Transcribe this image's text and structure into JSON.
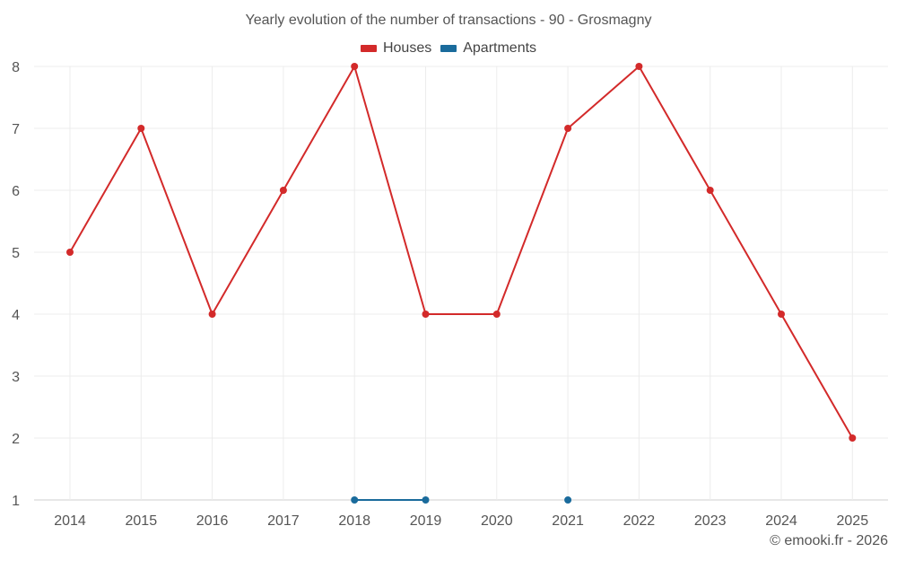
{
  "chart_data": {
    "type": "line",
    "title": "Yearly evolution of the number of transactions - 90 - Grosmagny",
    "x": [
      "2014",
      "2015",
      "2016",
      "2017",
      "2018",
      "2019",
      "2020",
      "2021",
      "2022",
      "2023",
      "2024",
      "2025"
    ],
    "yticks": [
      "1",
      "2",
      "3",
      "4",
      "5",
      "6",
      "7",
      "8"
    ],
    "ylim": [
      1,
      8
    ],
    "grid": true,
    "legend_position": "top-center",
    "series": [
      {
        "name": "Houses",
        "color": "#d32a2a",
        "values": [
          5,
          7,
          4,
          6,
          8,
          4,
          4,
          7,
          8,
          6,
          4,
          2
        ]
      },
      {
        "name": "Apartments",
        "color": "#1a6b9c",
        "values": [
          null,
          null,
          null,
          null,
          1,
          1,
          null,
          1,
          null,
          null,
          null,
          null
        ]
      }
    ]
  },
  "footer": {
    "copyright": "© emooki.fr - 2026"
  }
}
